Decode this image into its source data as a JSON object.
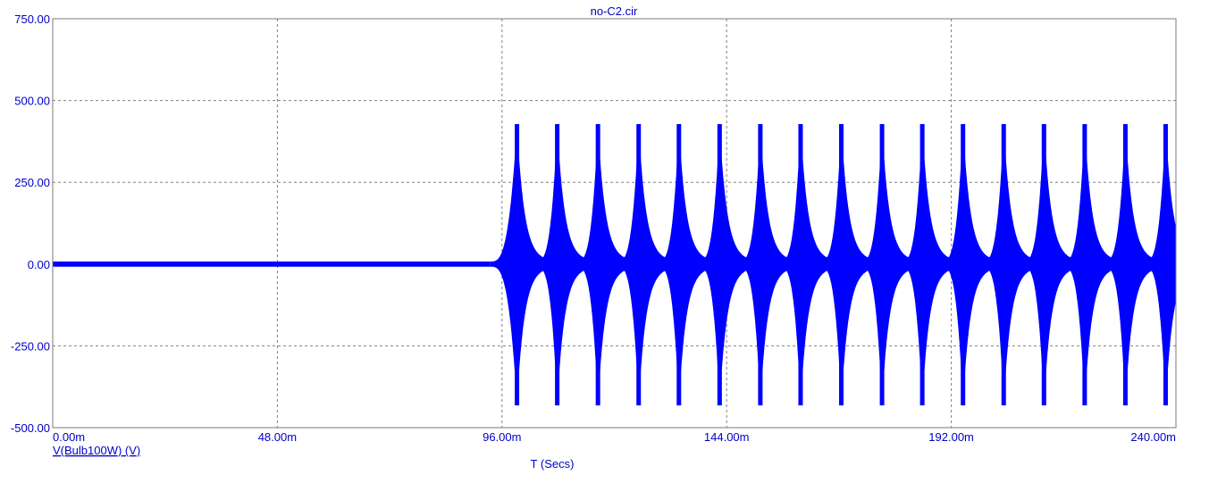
{
  "chart_data": {
    "type": "line",
    "title": "no-C2.cir",
    "xlabel": "T (Secs)",
    "ylabel": "",
    "xlim": [
      0,
      0.24
    ],
    "ylim": [
      -500,
      750
    ],
    "x_ticks": [
      0,
      0.048,
      0.096,
      0.144,
      0.192,
      0.24
    ],
    "x_tick_labels": [
      "0.00m",
      "48.00m",
      "96.00m",
      "144.00m",
      "192.00m",
      "240.00m"
    ],
    "y_ticks": [
      750,
      500,
      250,
      0,
      -250,
      -500
    ],
    "y_tick_labels": [
      "750.00",
      "500.00",
      "250.00",
      "0.00",
      "-250.00",
      "-500.00"
    ],
    "grid": true,
    "series": [
      {
        "name": "V(Bulb100W) (V)",
        "color": "#0000ff",
        "description_points": {
          "x": [
            0,
            0.09,
            0.096,
            0.1,
            0.24
          ],
          "y_max": [
            8,
            8,
            100,
            425,
            425
          ],
          "y_min": [
            -8,
            -8,
            -100,
            -430,
            -430
          ]
        },
        "pulse_times": [
          0.0992,
          0.1078,
          0.1165,
          0.1252,
          0.1338,
          0.1425,
          0.1512,
          0.1598,
          0.1685,
          0.1772,
          0.1858,
          0.1945,
          0.2032,
          0.2118,
          0.2205,
          0.2292,
          0.2378
        ]
      }
    ]
  }
}
